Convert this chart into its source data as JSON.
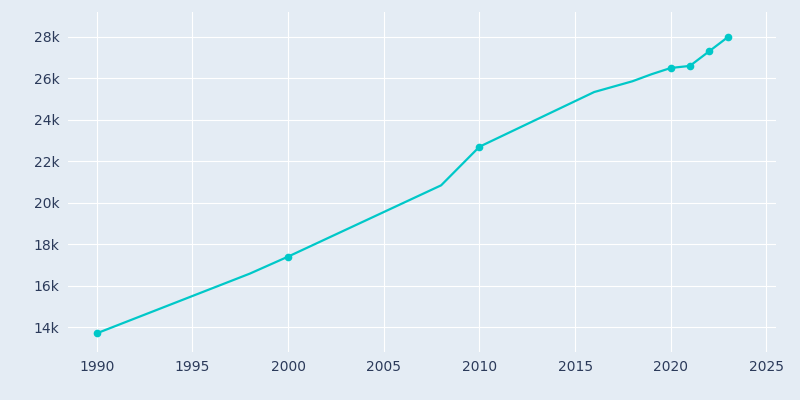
{
  "years": [
    1990,
    1991,
    1992,
    1993,
    1994,
    1995,
    1996,
    1997,
    1998,
    1999,
    2000,
    2001,
    2002,
    2003,
    2004,
    2005,
    2006,
    2007,
    2008,
    2009,
    2010,
    2011,
    2012,
    2013,
    2014,
    2015,
    2016,
    2017,
    2018,
    2019,
    2020,
    2021,
    2022,
    2023
  ],
  "population": [
    13700,
    14060,
    14420,
    14780,
    15140,
    15500,
    15860,
    16220,
    16580,
    16990,
    17400,
    17830,
    18260,
    18690,
    19120,
    19550,
    19980,
    20410,
    20840,
    21770,
    22700,
    23140,
    23580,
    24020,
    24460,
    24900,
    25340,
    25600,
    25860,
    26200,
    26500,
    26600,
    27300,
    28000
  ],
  "line_color": "#00C8C8",
  "marker_color": "#00C8C8",
  "background_color": "#E4ECF4",
  "grid_color": "#FFFFFF",
  "tick_color": "#2B3A5A",
  "xlim": [
    1988.5,
    2025.5
  ],
  "ylim": [
    12800,
    29200
  ],
  "xticks": [
    1990,
    1995,
    2000,
    2005,
    2010,
    2015,
    2020,
    2025
  ],
  "yticks": [
    14000,
    16000,
    18000,
    20000,
    22000,
    24000,
    26000,
    28000
  ],
  "ytick_labels": [
    "14k",
    "16k",
    "18k",
    "20k",
    "22k",
    "24k",
    "26k",
    "28k"
  ],
  "marker_years": [
    1990,
    2000,
    2010,
    2020,
    2021,
    2022,
    2023
  ],
  "marker_population": [
    13700,
    17400,
    22700,
    26500,
    26600,
    27300,
    28000
  ],
  "line_width": 1.6,
  "marker_size": 4.5
}
